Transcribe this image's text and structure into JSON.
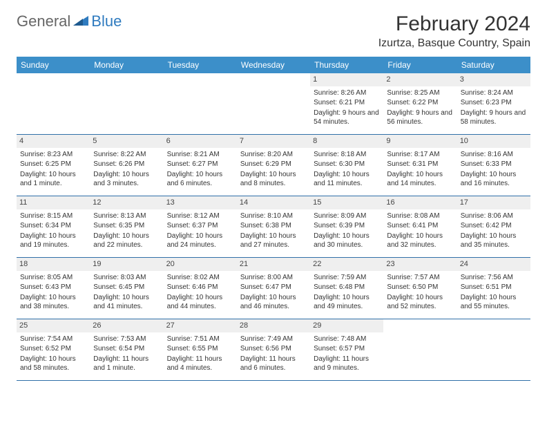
{
  "logo": {
    "general": "General",
    "blue": "Blue"
  },
  "title": "February 2024",
  "location": "Izurtza, Basque Country, Spain",
  "weekdays": [
    "Sunday",
    "Monday",
    "Tuesday",
    "Wednesday",
    "Thursday",
    "Friday",
    "Saturday"
  ],
  "colors": {
    "headerBar": "#3c8fc9",
    "headerText": "#ffffff",
    "dayNumBg": "#efefef",
    "rowBorder": "#2f6fa8",
    "logoBlue": "#2f7bbf",
    "logoGray": "#666666"
  },
  "weeks": [
    [
      null,
      null,
      null,
      null,
      {
        "n": "1",
        "sunrise": "8:26 AM",
        "sunset": "6:21 PM",
        "daylight": "9 hours and 54 minutes."
      },
      {
        "n": "2",
        "sunrise": "8:25 AM",
        "sunset": "6:22 PM",
        "daylight": "9 hours and 56 minutes."
      },
      {
        "n": "3",
        "sunrise": "8:24 AM",
        "sunset": "6:23 PM",
        "daylight": "9 hours and 58 minutes."
      }
    ],
    [
      {
        "n": "4",
        "sunrise": "8:23 AM",
        "sunset": "6:25 PM",
        "daylight": "10 hours and 1 minute."
      },
      {
        "n": "5",
        "sunrise": "8:22 AM",
        "sunset": "6:26 PM",
        "daylight": "10 hours and 3 minutes."
      },
      {
        "n": "6",
        "sunrise": "8:21 AM",
        "sunset": "6:27 PM",
        "daylight": "10 hours and 6 minutes."
      },
      {
        "n": "7",
        "sunrise": "8:20 AM",
        "sunset": "6:29 PM",
        "daylight": "10 hours and 8 minutes."
      },
      {
        "n": "8",
        "sunrise": "8:18 AM",
        "sunset": "6:30 PM",
        "daylight": "10 hours and 11 minutes."
      },
      {
        "n": "9",
        "sunrise": "8:17 AM",
        "sunset": "6:31 PM",
        "daylight": "10 hours and 14 minutes."
      },
      {
        "n": "10",
        "sunrise": "8:16 AM",
        "sunset": "6:33 PM",
        "daylight": "10 hours and 16 minutes."
      }
    ],
    [
      {
        "n": "11",
        "sunrise": "8:15 AM",
        "sunset": "6:34 PM",
        "daylight": "10 hours and 19 minutes."
      },
      {
        "n": "12",
        "sunrise": "8:13 AM",
        "sunset": "6:35 PM",
        "daylight": "10 hours and 22 minutes."
      },
      {
        "n": "13",
        "sunrise": "8:12 AM",
        "sunset": "6:37 PM",
        "daylight": "10 hours and 24 minutes."
      },
      {
        "n": "14",
        "sunrise": "8:10 AM",
        "sunset": "6:38 PM",
        "daylight": "10 hours and 27 minutes."
      },
      {
        "n": "15",
        "sunrise": "8:09 AM",
        "sunset": "6:39 PM",
        "daylight": "10 hours and 30 minutes."
      },
      {
        "n": "16",
        "sunrise": "8:08 AM",
        "sunset": "6:41 PM",
        "daylight": "10 hours and 32 minutes."
      },
      {
        "n": "17",
        "sunrise": "8:06 AM",
        "sunset": "6:42 PM",
        "daylight": "10 hours and 35 minutes."
      }
    ],
    [
      {
        "n": "18",
        "sunrise": "8:05 AM",
        "sunset": "6:43 PM",
        "daylight": "10 hours and 38 minutes."
      },
      {
        "n": "19",
        "sunrise": "8:03 AM",
        "sunset": "6:45 PM",
        "daylight": "10 hours and 41 minutes."
      },
      {
        "n": "20",
        "sunrise": "8:02 AM",
        "sunset": "6:46 PM",
        "daylight": "10 hours and 44 minutes."
      },
      {
        "n": "21",
        "sunrise": "8:00 AM",
        "sunset": "6:47 PM",
        "daylight": "10 hours and 46 minutes."
      },
      {
        "n": "22",
        "sunrise": "7:59 AM",
        "sunset": "6:48 PM",
        "daylight": "10 hours and 49 minutes."
      },
      {
        "n": "23",
        "sunrise": "7:57 AM",
        "sunset": "6:50 PM",
        "daylight": "10 hours and 52 minutes."
      },
      {
        "n": "24",
        "sunrise": "7:56 AM",
        "sunset": "6:51 PM",
        "daylight": "10 hours and 55 minutes."
      }
    ],
    [
      {
        "n": "25",
        "sunrise": "7:54 AM",
        "sunset": "6:52 PM",
        "daylight": "10 hours and 58 minutes."
      },
      {
        "n": "26",
        "sunrise": "7:53 AM",
        "sunset": "6:54 PM",
        "daylight": "11 hours and 1 minute."
      },
      {
        "n": "27",
        "sunrise": "7:51 AM",
        "sunset": "6:55 PM",
        "daylight": "11 hours and 4 minutes."
      },
      {
        "n": "28",
        "sunrise": "7:49 AM",
        "sunset": "6:56 PM",
        "daylight": "11 hours and 6 minutes."
      },
      {
        "n": "29",
        "sunrise": "7:48 AM",
        "sunset": "6:57 PM",
        "daylight": "11 hours and 9 minutes."
      },
      null,
      null
    ]
  ]
}
